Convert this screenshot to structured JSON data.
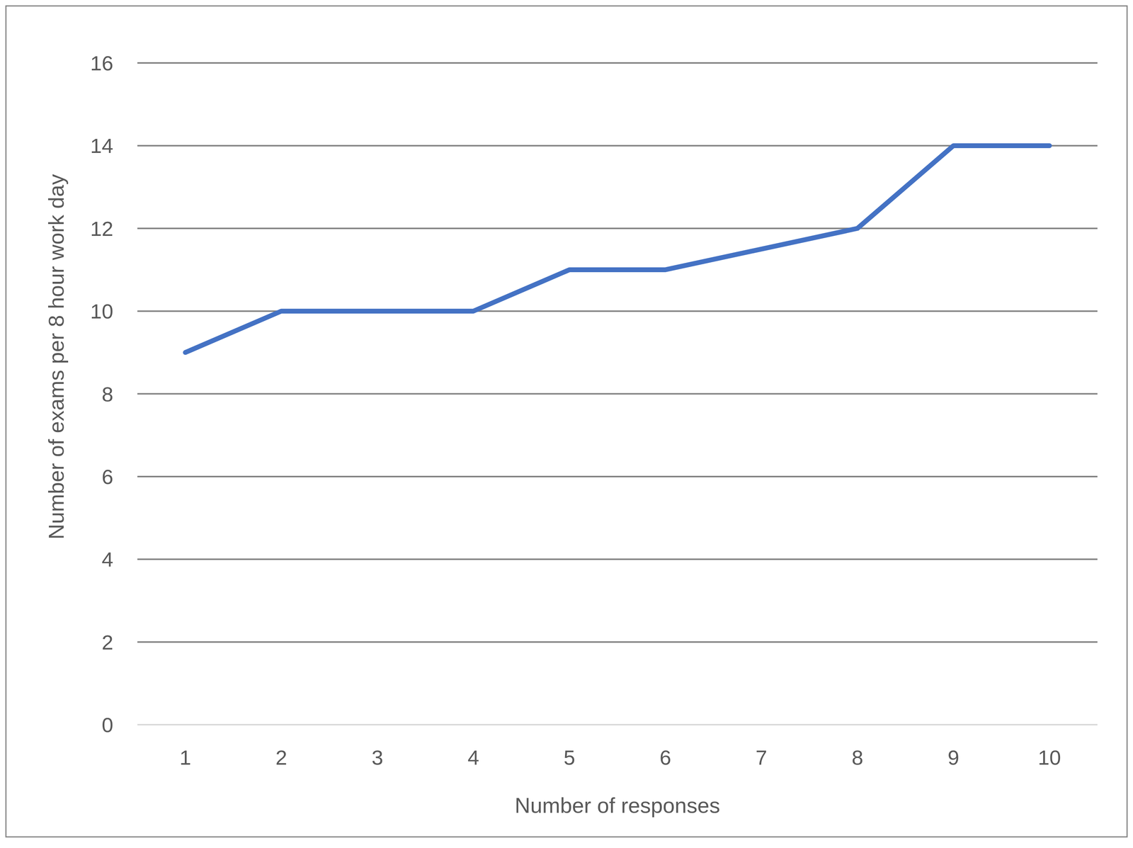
{
  "chart_data": {
    "type": "line",
    "x_label": "Number of responses",
    "y_label": "Number of exams per 8 hour work day",
    "categories": [
      "1",
      "2",
      "3",
      "4",
      "5",
      "6",
      "7",
      "8",
      "9",
      "10"
    ],
    "values": [
      9,
      10,
      10,
      10,
      11,
      11,
      11.5,
      12,
      14,
      14
    ],
    "color": "#4472c4",
    "ylim": [
      0,
      16
    ],
    "yticks": [
      0,
      2,
      4,
      6,
      8,
      10,
      12,
      14,
      16
    ],
    "grid": true
  }
}
